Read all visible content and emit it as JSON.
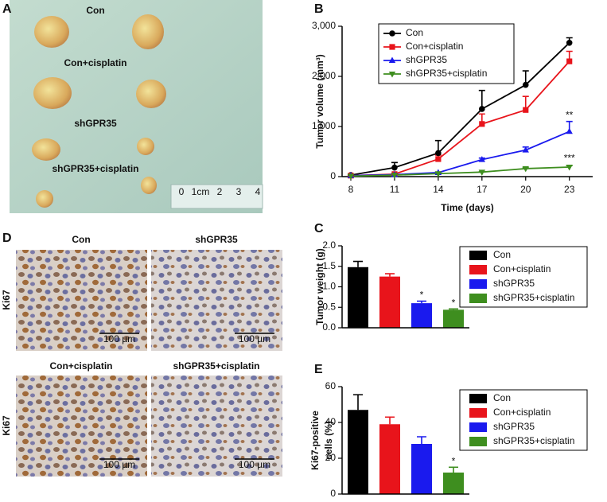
{
  "photo_a": {
    "label": "A",
    "groups": [
      "Con",
      "Con+cisplatin",
      "shGPR35",
      "shGPR35+cisplatin"
    ],
    "ruler_labels": [
      "0",
      "1cm",
      "2",
      "3",
      "4"
    ]
  },
  "photo_d": {
    "label": "D",
    "row_label": "Ki67",
    "panels": [
      "Con",
      "shGPR35",
      "Con+cisplatin",
      "shGPR35+cisplatin"
    ],
    "scale_bar": "100 µm"
  },
  "chart_data": [
    {
      "type": "line",
      "label": "B",
      "xlabel": "Time (days)",
      "ylabel": "Tumor volume (mm³)",
      "x": [
        8,
        11,
        14,
        17,
        20,
        23
      ],
      "xlim": [
        7.4,
        24.6
      ],
      "xticks": [
        8,
        11,
        14,
        17,
        20,
        23
      ],
      "ylim": [
        0,
        3000
      ],
      "yticks": [
        0,
        {
          "value": 1000,
          "label": "1,000"
        },
        {
          "value": 2000,
          "label": "2,000"
        },
        {
          "value": 3000,
          "label": "3,000"
        }
      ],
      "series": [
        {
          "name": "Con",
          "color": "#000000",
          "marker": "circle",
          "values": [
            30,
            180,
            470,
            1350,
            1830,
            2670
          ],
          "errors": [
            10,
            100,
            250,
            370,
            280,
            100
          ]
        },
        {
          "name": "Con+cisplatin",
          "color": "#e8141b",
          "marker": "square",
          "values": [
            20,
            50,
            350,
            1050,
            1330,
            2300
          ],
          "errors": [
            5,
            10,
            80,
            200,
            270,
            200
          ]
        },
        {
          "name": "shGPR35",
          "color": "#1a1aee",
          "marker": "triangle-up",
          "values": [
            20,
            40,
            80,
            340,
            530,
            900
          ],
          "errors": [
            5,
            10,
            10,
            30,
            60,
            200
          ]
        },
        {
          "name": "shGPR35+cisplatin",
          "color": "#3e8e1f",
          "marker": "triangle-down",
          "values": [
            10,
            30,
            60,
            90,
            160,
            190
          ],
          "errors": [
            5,
            5,
            10,
            10,
            20,
            30
          ]
        }
      ],
      "annotations": [
        {
          "text": "**",
          "x": 23,
          "y": 1220
        },
        {
          "text": "***",
          "x": 23,
          "y": 360
        }
      ]
    },
    {
      "type": "bar",
      "label": "C",
      "ylabel": "Tumor weight (g)",
      "categories": [
        "Con",
        "Con+cisplatin",
        "shGPR35",
        "shGPR35+cisplatin"
      ],
      "colors": [
        "#000000",
        "#e8141b",
        "#1a1aee",
        "#3e8e1f"
      ],
      "values": [
        1.48,
        1.25,
        0.6,
        0.44
      ],
      "errors": [
        0.14,
        0.07,
        0.05,
        0.02
      ],
      "ylim": [
        0,
        2.0
      ],
      "yticks": [
        {
          "value": 0,
          "label": "0.0"
        },
        0.5,
        {
          "value": 1,
          "label": "1.0"
        },
        1.5,
        {
          "value": 2,
          "label": "2.0"
        }
      ],
      "annotations": [
        {
          "text": "*",
          "category": "shGPR35"
        },
        {
          "text": "*",
          "category": "shGPR35+cisplatin"
        }
      ]
    },
    {
      "type": "bar",
      "label": "E",
      "ylabel": [
        "Ki67-positive",
        "cells (%)"
      ],
      "categories": [
        "Con",
        "Con+cisplatin",
        "shGPR35",
        "shGPR35+cisplatin"
      ],
      "colors": [
        "#000000",
        "#e8141b",
        "#1a1aee",
        "#3e8e1f"
      ],
      "values": [
        47,
        39,
        28,
        12
      ],
      "errors": [
        8.5,
        4,
        4,
        3
      ],
      "ylim": [
        0,
        60
      ],
      "yticks": [
        0,
        20,
        40,
        60
      ],
      "annotations": [
        {
          "text": "*",
          "category": "shGPR35+cisplatin"
        }
      ]
    }
  ]
}
